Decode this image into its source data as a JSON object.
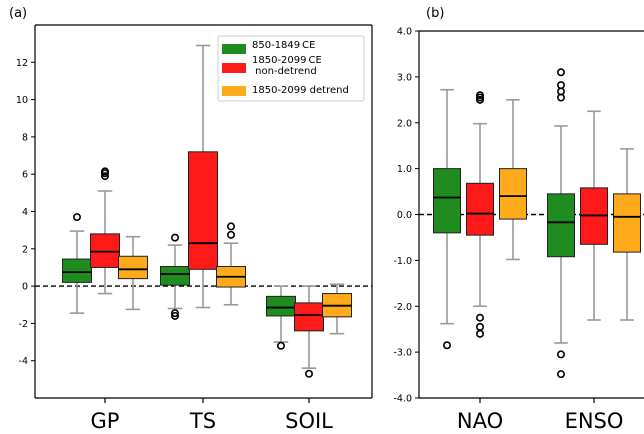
{
  "chart_data": [
    {
      "type": "box",
      "panel_label": "(a)",
      "categories": [
        "GP",
        "TS",
        "SOIL"
      ],
      "ylim": [
        -6,
        14
      ],
      "yticks": [
        -4,
        -2,
        0,
        2,
        4,
        6,
        8,
        10,
        12
      ],
      "reference_line": 0,
      "legend_position": "top-right",
      "series": [
        {
          "name": "850-1849 CE",
          "color": "#1e8c1e",
          "boxes": [
            {
              "whislo": -1.45,
              "q1": 0.2,
              "median": 0.75,
              "q3": 1.45,
              "whishi": 2.95,
              "fliers": [
                3.7
              ]
            },
            {
              "whislo": -1.2,
              "q1": 0.05,
              "median": 0.65,
              "q3": 1.05,
              "whishi": 2.2,
              "fliers": [
                2.6,
                -1.45,
                -1.6
              ]
            },
            {
              "whislo": -3.0,
              "q1": -1.6,
              "median": -1.15,
              "q3": -0.55,
              "whishi": 0.0,
              "fliers": [
                -3.2
              ]
            }
          ]
        },
        {
          "name": "1850-2099 CE non-detrend",
          "color": "#ff1a1a",
          "boxes": [
            {
              "whislo": -0.4,
              "q1": 1.0,
              "median": 1.85,
              "q3": 2.8,
              "whishi": 5.1,
              "fliers": [
                5.9,
                6.05,
                6.15
              ]
            },
            {
              "whislo": -1.15,
              "q1": 0.9,
              "median": 2.3,
              "q3": 7.2,
              "whishi": 12.9,
              "fliers": []
            },
            {
              "whislo": -4.4,
              "q1": -2.4,
              "median": -1.55,
              "q3": -0.9,
              "whishi": 0.0,
              "fliers": [
                -4.7
              ]
            }
          ]
        },
        {
          "name": "1850-2099 detrend",
          "color": "#ffaa1a",
          "boxes": [
            {
              "whislo": -1.25,
              "q1": 0.4,
              "median": 0.9,
              "q3": 1.6,
              "whishi": 2.65,
              "fliers": []
            },
            {
              "whislo": -1.0,
              "q1": -0.05,
              "median": 0.5,
              "q3": 1.05,
              "whishi": 2.3,
              "fliers": [
                2.75,
                3.2
              ]
            },
            {
              "whislo": -2.55,
              "q1": -1.65,
              "median": -1.05,
              "q3": -0.4,
              "whishi": 0.1,
              "fliers": []
            }
          ]
        }
      ]
    },
    {
      "type": "box",
      "panel_label": "(b)",
      "categories": [
        "NAO",
        "ENSO"
      ],
      "ylim": [
        -4.0,
        4.0
      ],
      "yticks": [
        -4.0,
        -3.0,
        -2.0,
        -1.0,
        0.0,
        1.0,
        2.0,
        3.0,
        4.0
      ],
      "ytick_labels": [
        "-4.0",
        "-3.0",
        "-2.0",
        "-1.0",
        "0.0",
        "1.0",
        "2.0",
        "3.0",
        "4.0"
      ],
      "reference_line": 0,
      "series": [
        {
          "name": "850-1849 CE",
          "color": "#1e8c1e",
          "boxes": [
            {
              "whislo": -2.38,
              "q1": -0.4,
              "median": 0.37,
              "q3": 1.0,
              "whishi": 2.72,
              "fliers": [
                -2.85
              ]
            },
            {
              "whislo": -2.8,
              "q1": -0.92,
              "median": -0.17,
              "q3": 0.45,
              "whishi": 1.93,
              "fliers": [
                2.55,
                2.68,
                2.82,
                3.1,
                -3.05,
                -3.48
              ]
            }
          ]
        },
        {
          "name": "1850-2099 CE non-detrend",
          "color": "#ff1a1a",
          "boxes": [
            {
              "whislo": -2.0,
              "q1": -0.45,
              "median": 0.02,
              "q3": 0.68,
              "whishi": 1.98,
              "fliers": [
                2.5,
                2.55,
                2.6,
                -2.25,
                -2.45,
                -2.6
              ]
            },
            {
              "whislo": -2.3,
              "q1": -0.65,
              "median": -0.02,
              "q3": 0.58,
              "whishi": 2.25,
              "fliers": []
            }
          ]
        },
        {
          "name": "1850-2099 detrend",
          "color": "#ffaa1a",
          "boxes": [
            {
              "whislo": -0.98,
              "q1": -0.1,
              "median": 0.4,
              "q3": 1.0,
              "whishi": 2.5,
              "fliers": []
            },
            {
              "whislo": -2.3,
              "q1": -0.82,
              "median": -0.05,
              "q3": 0.45,
              "whishi": 1.43,
              "fliers": []
            }
          ]
        }
      ]
    }
  ],
  "legend": {
    "items": [
      {
        "lines": [
          "850-1849 CE"
        ],
        "color": "#1e8c1e"
      },
      {
        "lines": [
          "1850-2099 CE",
          " non-detrend"
        ],
        "color": "#ff1a1a"
      },
      {
        "lines": [
          "1850-2099 detrend"
        ],
        "color": "#ffaa1a"
      }
    ]
  }
}
